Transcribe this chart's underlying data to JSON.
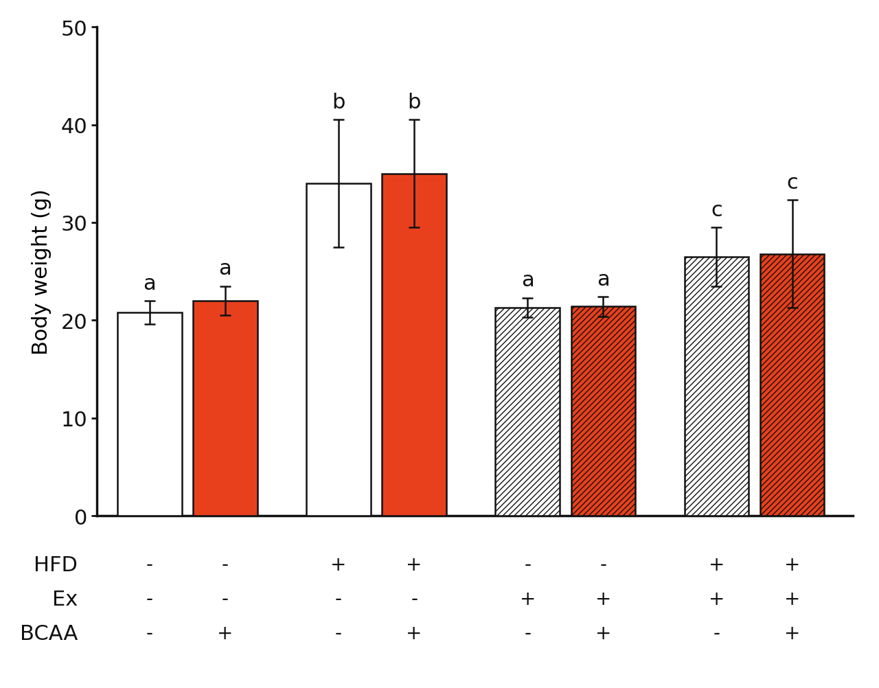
{
  "values": [
    20.8,
    22.0,
    34.0,
    35.0,
    21.3,
    21.4,
    26.5,
    26.8
  ],
  "errors": [
    1.2,
    1.5,
    6.5,
    5.5,
    1.0,
    1.0,
    3.0,
    5.5
  ],
  "letters": [
    "a",
    "a",
    "b",
    "b",
    "a",
    "a",
    "c",
    "c"
  ],
  "bar_colors": [
    "white",
    "#e8401c",
    "white",
    "#e8401c",
    "white",
    "#e8401c",
    "white",
    "#e8401c"
  ],
  "hatched": [
    false,
    false,
    false,
    false,
    true,
    true,
    true,
    true
  ],
  "hatch_pattern": "////",
  "ylabel": "Body weight (g)",
  "ylim": [
    0,
    50
  ],
  "yticks": [
    0,
    10,
    20,
    30,
    40,
    50
  ],
  "background_color": "#ffffff",
  "bar_edge_color": "#111111",
  "error_color": "#111111",
  "letter_color": "#111111",
  "ylabel_fontsize": 22,
  "tick_fontsize": 22,
  "letter_fontsize": 22,
  "row_label_fontsize": 22,
  "sign_fontsize": 20,
  "axis_label_rows": [
    {
      "label": "HFD",
      "signs": [
        "-",
        "-",
        "+",
        "+",
        "-",
        "-",
        "+",
        "+"
      ]
    },
    {
      "label": "Ex",
      "signs": [
        "-",
        "-",
        "-",
        "-",
        "+",
        "+",
        "+",
        "+"
      ]
    },
    {
      "label": "BCAA",
      "signs": [
        "-",
        "+",
        "-",
        "+",
        "-",
        "+",
        "-",
        "+"
      ]
    }
  ],
  "bar_width": 0.85,
  "group_positions": [
    1.0,
    2.0,
    3.5,
    4.5,
    6.0,
    7.0,
    8.5,
    9.5
  ]
}
